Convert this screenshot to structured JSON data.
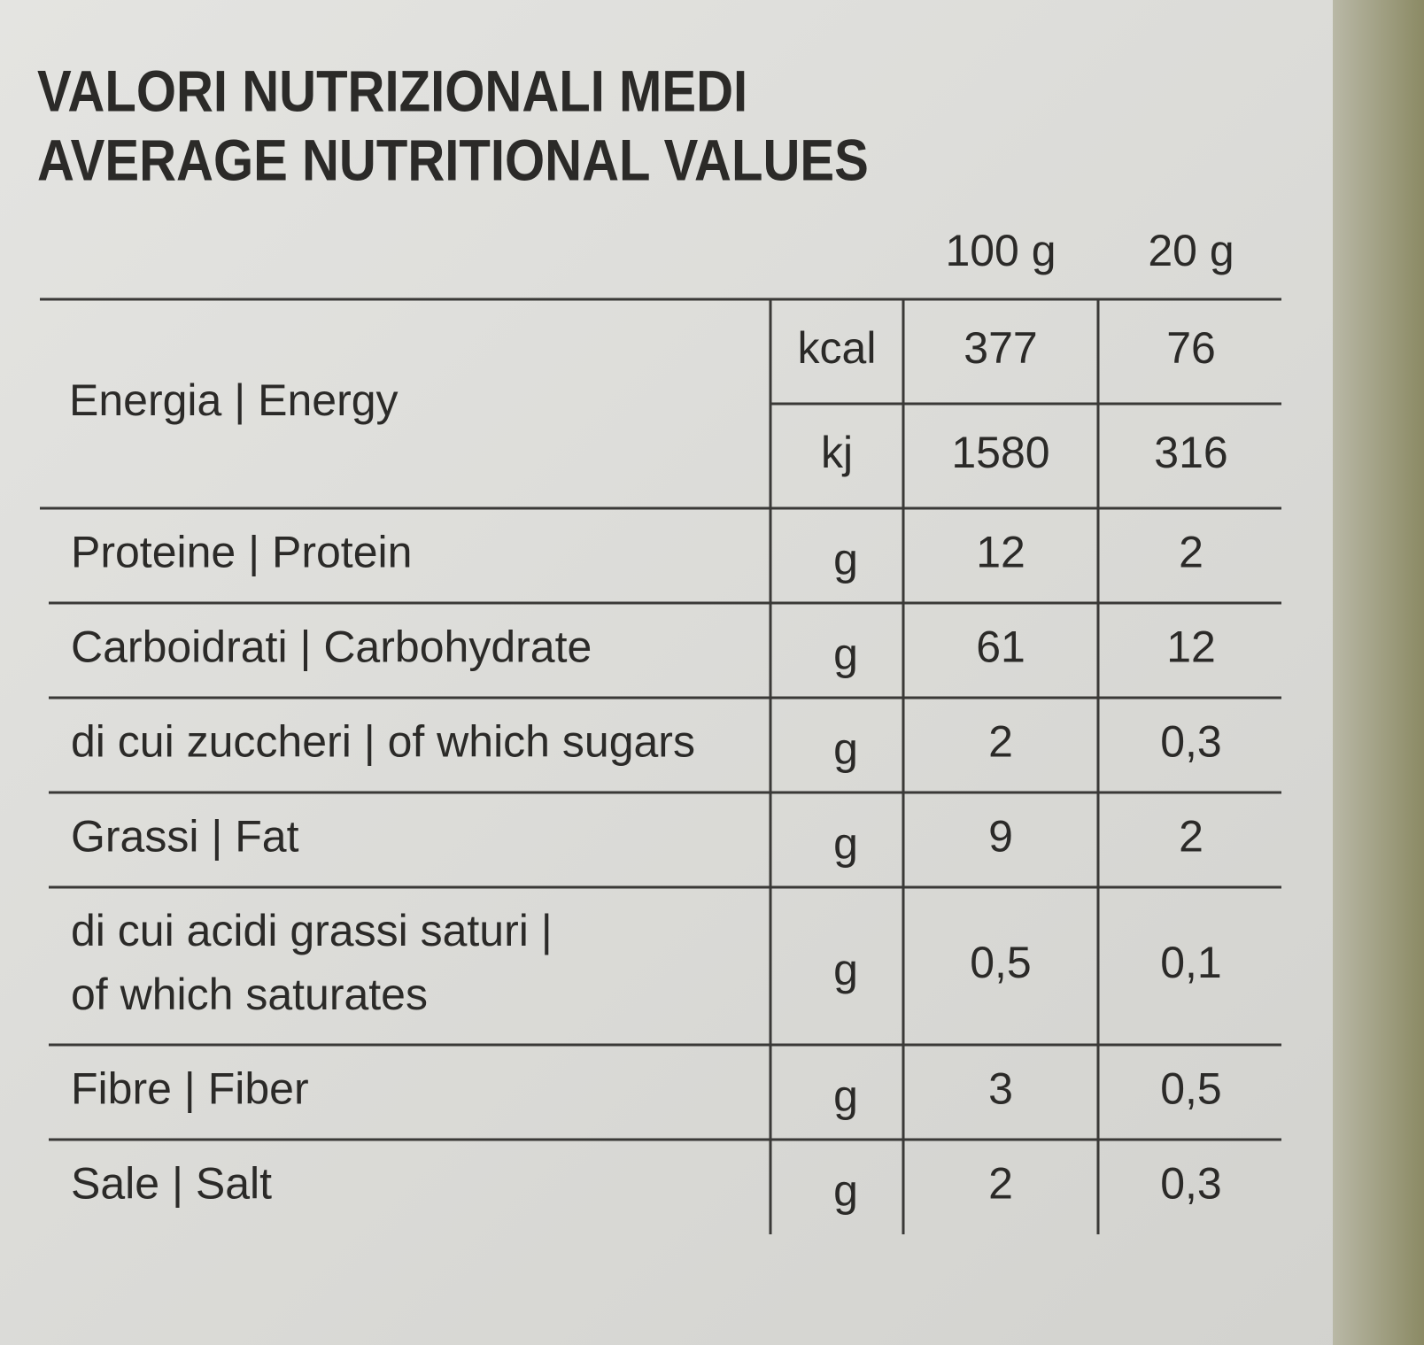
{
  "header": {
    "title_lines": [
      "VALORI NUTRIZIONALI MEDI",
      "AVERAGE NUTRITIONAL VALUES"
    ]
  },
  "table": {
    "columns": [
      "100 g",
      "20 g"
    ],
    "energy": {
      "label": "Energia | Energy",
      "rows": [
        {
          "unit": "kcal",
          "values": [
            "377",
            "76"
          ]
        },
        {
          "unit": "kj",
          "values": [
            "1580",
            "316"
          ]
        }
      ]
    },
    "rows": [
      {
        "label": [
          "Proteine | Protein"
        ],
        "unit": "g",
        "values": [
          "12",
          "2"
        ]
      },
      {
        "label": [
          "Carboidrati | Carbohydrate"
        ],
        "unit": "g",
        "values": [
          "61",
          "12"
        ]
      },
      {
        "label": [
          "di cui zuccheri | of which sugars"
        ],
        "unit": "g",
        "values": [
          "2",
          "0,3"
        ]
      },
      {
        "label": [
          "Grassi | Fat"
        ],
        "unit": "g",
        "values": [
          "9",
          "2"
        ]
      },
      {
        "label": [
          "di cui acidi grassi saturi |",
          "of which saturates"
        ],
        "unit": "g",
        "values": [
          "0,5",
          "0,1"
        ]
      },
      {
        "label": [
          "Fibre | Fiber"
        ],
        "unit": "g",
        "values": [
          "3",
          "0,5"
        ]
      },
      {
        "label": [
          "Sale | Salt"
        ],
        "unit": "g",
        "values": [
          "2",
          "0,3"
        ]
      }
    ]
  }
}
